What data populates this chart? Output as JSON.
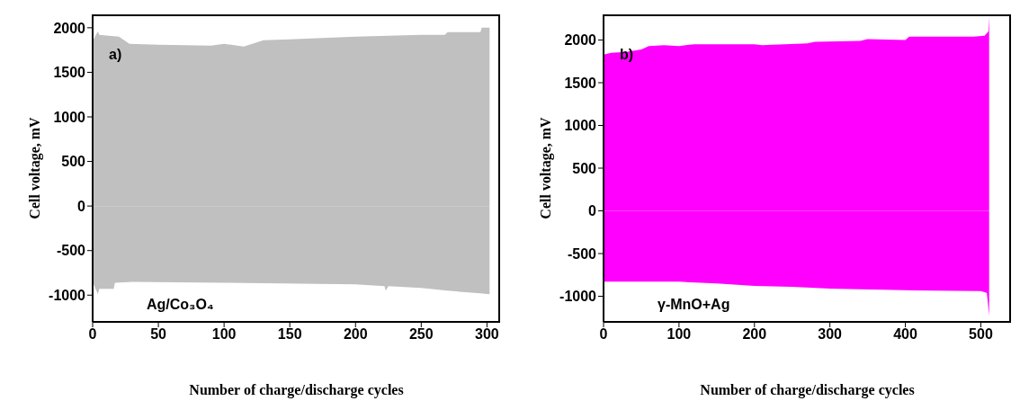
{
  "chart_data": [
    {
      "type": "area",
      "xlabel": "Number of charge/discharge cycles",
      "ylabel": "Cell voltage, mV",
      "xlim": [
        0,
        310
      ],
      "xticks": [
        0,
        50,
        100,
        150,
        200,
        250,
        300
      ],
      "ylim": [
        -1300,
        2150
      ],
      "yticks": [
        -1000,
        -500,
        0,
        500,
        1000,
        1500,
        2000
      ],
      "annotations": [
        "a)",
        "Ag/Co₃O₄"
      ],
      "series": [
        {
          "color": "#c0c0c0",
          "x": [
            0,
            4,
            5,
            20,
            28,
            50,
            90,
            100,
            110,
            115,
            130,
            150,
            200,
            225,
            250,
            268,
            270,
            295,
            296,
            302
          ],
          "values": [
            1850,
            1960,
            1920,
            1900,
            1820,
            1810,
            1800,
            1820,
            1800,
            1790,
            1860,
            1870,
            1900,
            1910,
            1920,
            1920,
            1950,
            1950,
            2000,
            2000
          ]
        },
        {
          "color": "#c0c0c0",
          "x": [
            0,
            4,
            5,
            16,
            17,
            30,
            100,
            200,
            222,
            223,
            225,
            250,
            270,
            295,
            302
          ],
          "values": [
            -850,
            -990,
            -930,
            -930,
            -860,
            -850,
            -860,
            -880,
            -900,
            -950,
            -900,
            -920,
            -950,
            -980,
            -990
          ]
        }
      ]
    },
    {
      "type": "area",
      "xlabel": "Number of charge/discharge cycles",
      "ylabel": "Cell voltage, mV",
      "xlim": [
        0,
        540
      ],
      "xticks": [
        0,
        100,
        200,
        300,
        400,
        500
      ],
      "ylim": [
        -1300,
        2300
      ],
      "yticks": [
        -1000,
        -500,
        0,
        500,
        1000,
        1500,
        2000
      ],
      "annotations": [
        "b)",
        "γ-MnO+Ag"
      ],
      "series": [
        {
          "color": "#ff00ff",
          "x": [
            0,
            10,
            30,
            50,
            60,
            80,
            100,
            120,
            200,
            210,
            270,
            280,
            340,
            350,
            400,
            405,
            490,
            505,
            510,
            511
          ],
          "values": [
            1830,
            1850,
            1860,
            1890,
            1930,
            1940,
            1930,
            1950,
            1950,
            1940,
            1960,
            1980,
            1990,
            2010,
            2000,
            2040,
            2040,
            2050,
            2100,
            2270
          ]
        },
        {
          "color": "#ff00ff",
          "x": [
            0,
            100,
            150,
            200,
            250,
            300,
            400,
            500,
            508,
            511
          ],
          "values": [
            -830,
            -830,
            -850,
            -880,
            -890,
            -910,
            -930,
            -940,
            -960,
            -1230
          ]
        }
      ]
    }
  ]
}
